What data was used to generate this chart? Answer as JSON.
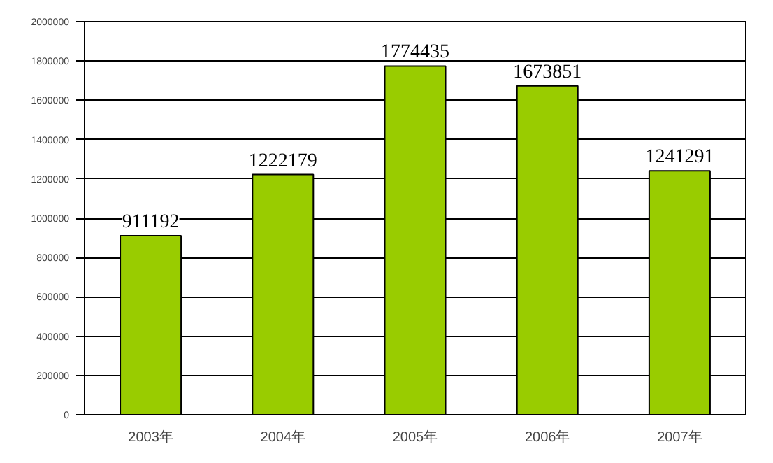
{
  "chart_data": {
    "type": "bar",
    "categories": [
      "2003年",
      "2004年",
      "2005年",
      "2006年",
      "2007年"
    ],
    "values": [
      911192,
      1222179,
      1774435,
      1673851,
      1241291
    ],
    "color": "#99cc00",
    "ylim": [
      0,
      2000000
    ],
    "yticks": [
      0,
      200000,
      400000,
      600000,
      800000,
      1000000,
      1200000,
      1400000,
      1600000,
      1800000,
      2000000
    ],
    "grid": "y",
    "data_labels": true
  }
}
